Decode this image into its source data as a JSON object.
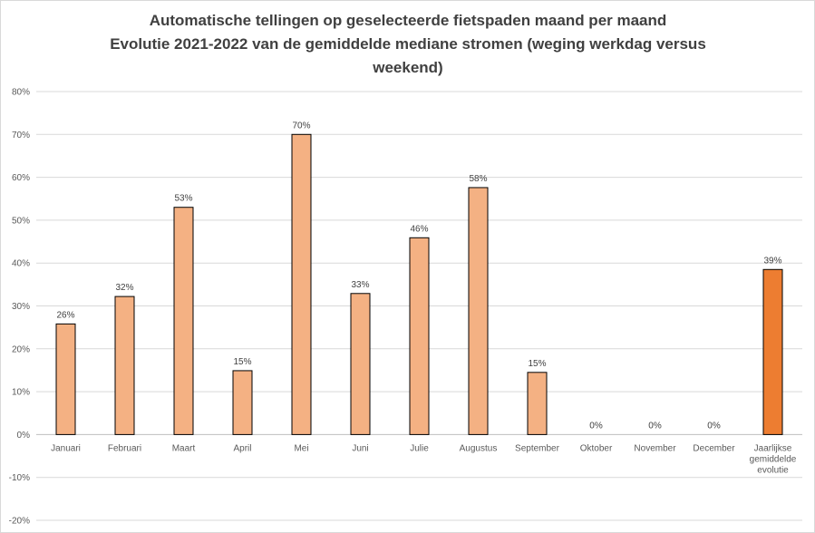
{
  "chart_data": {
    "type": "bar",
    "title": [
      "Automatische tellingen op geselecteerde fietspaden maand per maand",
      "Evolutie 2021-2022 van de gemiddelde mediane stromen (weging werkdag versus",
      "weekend)"
    ],
    "xlabel": "",
    "ylabel": "",
    "ylim": [
      -0.2,
      0.8
    ],
    "yticks": [
      -0.2,
      -0.1,
      0,
      0.1,
      0.2,
      0.3,
      0.4,
      0.5,
      0.6,
      0.7,
      0.8
    ],
    "ytick_labels": [
      "-20%",
      "-10%",
      "0%",
      "10%",
      "20%",
      "30%",
      "40%",
      "50%",
      "60%",
      "70%",
      "80%"
    ],
    "grid": true,
    "categories": [
      [
        "Januari"
      ],
      [
        "Februari"
      ],
      [
        "Maart"
      ],
      [
        "April"
      ],
      [
        "Mei"
      ],
      [
        "Juni"
      ],
      [
        "Julie"
      ],
      [
        "Augustus"
      ],
      [
        "September"
      ],
      [
        "Oktober"
      ],
      [
        "November"
      ],
      [
        "December"
      ],
      [
        "Jaarlijkse",
        "gemiddelde",
        "evolutie"
      ]
    ],
    "values": [
      0.258,
      0.322,
      0.53,
      0.149,
      0.7,
      0.329,
      0.459,
      0.576,
      0.145,
      0,
      0,
      0,
      0.385
    ],
    "data_labels": [
      "26%",
      "32%",
      "53%",
      "15%",
      "70%",
      "33%",
      "46%",
      "58%",
      "15%",
      "0%",
      "0%",
      "0%",
      "39%"
    ],
    "colors": [
      "#F4B183",
      "#F4B183",
      "#F4B183",
      "#F4B183",
      "#F4B183",
      "#F4B183",
      "#F4B183",
      "#F4B183",
      "#F4B183",
      "#F4B183",
      "#F4B183",
      "#F4B183",
      "#ED7D31"
    ]
  }
}
